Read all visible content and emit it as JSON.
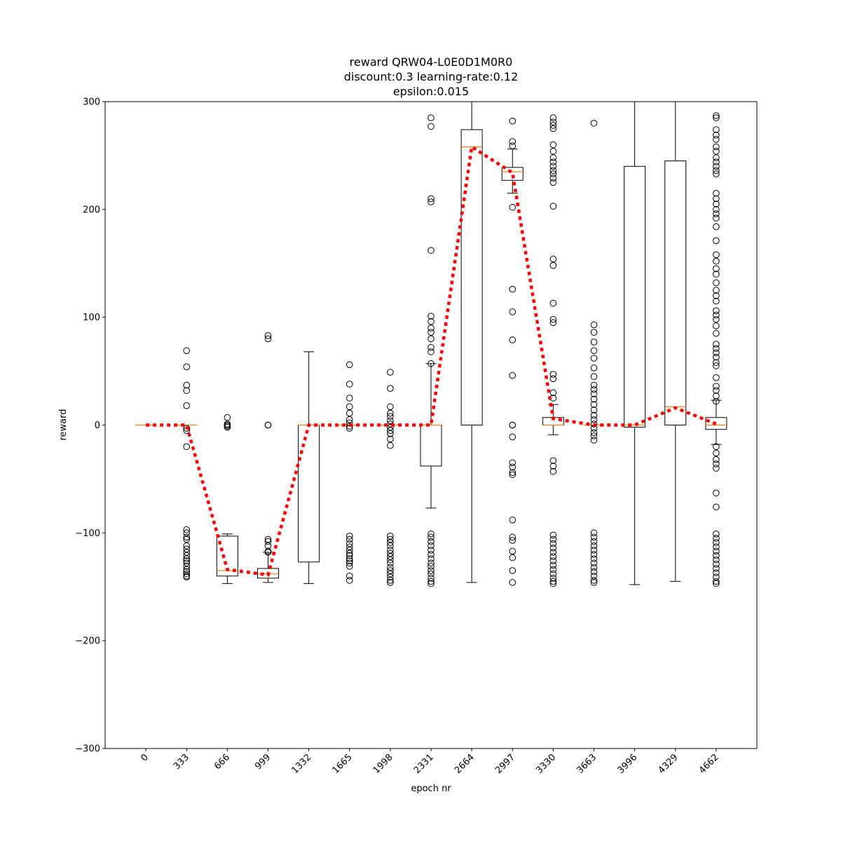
{
  "chart_data": {
    "type": "box",
    "title_lines": [
      "reward QRW04-L0E0D1M0R0",
      "discount:0.3 learning-rate:0.12",
      "epsilon:0.015"
    ],
    "xlabel": "epoch nr",
    "ylabel": "reward",
    "ylim": [
      -300,
      300
    ],
    "yticks": [
      -300,
      -200,
      -100,
      0,
      100,
      200,
      300
    ],
    "ytick_labels": [
      "−300",
      "−200",
      "−100",
      "0",
      "100",
      "200",
      "300"
    ],
    "categories": [
      "0",
      "333",
      "666",
      "999",
      "1332",
      "1665",
      "1998",
      "2331",
      "2664",
      "2997",
      "3330",
      "3663",
      "3996",
      "4329",
      "4662"
    ],
    "grid": false,
    "colors": {
      "box": "#000000",
      "median": "#ff7f0e",
      "mean_line": "#ff0000"
    },
    "boxes": [
      {
        "q1": 0,
        "median": 0,
        "q3": 0,
        "whislo": 0,
        "whishi": 0,
        "fliers": []
      },
      {
        "q1": 0,
        "median": 0,
        "q3": 0,
        "whislo": 0,
        "whishi": 0,
        "fliers": [
          69,
          54,
          37,
          32,
          18,
          -3,
          -5,
          -20,
          -97,
          -100,
          -104,
          -106,
          -112,
          -115,
          -118,
          -121,
          -124,
          -126,
          -128,
          -131,
          -134,
          -136,
          -138,
          -140,
          -141
        ]
      },
      {
        "q1": -140,
        "median": -135,
        "q3": -103,
        "whislo": -147,
        "whishi": -101,
        "fliers": [
          7,
          1,
          0,
          -1,
          -2
        ]
      },
      {
        "q1": -142,
        "median": -138,
        "q3": -133,
        "whislo": -146,
        "whishi": -118,
        "fliers": [
          83,
          80,
          0,
          0,
          -106,
          -108,
          -112,
          -117,
          -118
        ]
      },
      {
        "q1": -127,
        "median": 0,
        "q3": 0,
        "whislo": -147,
        "whishi": 68,
        "fliers": []
      },
      {
        "q1": 0,
        "median": 0,
        "q3": 0,
        "whislo": 0,
        "whishi": 0,
        "fliers": [
          56,
          38,
          25,
          17,
          11,
          5,
          2,
          -1,
          -3,
          -103,
          -106,
          -110,
          -113,
          -116,
          -119,
          -121,
          -124,
          -126,
          -128,
          -131,
          -140,
          -144
        ]
      },
      {
        "q1": 0,
        "median": 0,
        "q3": 0,
        "whislo": 0,
        "whishi": 0,
        "fliers": [
          49,
          34,
          17,
          11,
          8,
          4,
          1,
          -2,
          -5,
          -8,
          -13,
          -19,
          -103,
          -106,
          -109,
          -112,
          -116,
          -119,
          -122,
          -125,
          -128,
          -132,
          -135,
          -138,
          -141,
          -144,
          -146
        ]
      },
      {
        "q1": -38,
        "median": 0,
        "q3": 0,
        "whislo": -77,
        "whishi": 57,
        "fliers": [
          285,
          277,
          210,
          207,
          162,
          101,
          96,
          90,
          86,
          80,
          72,
          68,
          57,
          -101,
          -104,
          -108,
          -112,
          -116,
          -120,
          -124,
          -128,
          -131,
          -135,
          -138,
          -142,
          -145,
          -147
        ]
      },
      {
        "q1": 0,
        "median": 258,
        "q3": 274,
        "whislo": -146,
        "whishi": 300,
        "fliers": []
      },
      {
        "q1": 227,
        "median": 235,
        "q3": 239,
        "whislo": 215,
        "whishi": 256,
        "fliers": [
          282,
          263,
          259,
          202,
          126,
          105,
          79,
          46,
          0,
          0,
          -11,
          -35,
          -39,
          -44,
          -46,
          -88,
          -104,
          -107,
          -117,
          -123,
          -135,
          -146
        ]
      },
      {
        "q1": 0,
        "median": 0,
        "q3": 7,
        "whislo": -9,
        "whishi": 19,
        "fliers": [
          285,
          281,
          278,
          275,
          260,
          254,
          248,
          244,
          240,
          236,
          233,
          229,
          225,
          203,
          154,
          148,
          113,
          98,
          95,
          47,
          43,
          30,
          25,
          -33,
          -38,
          -43,
          -102,
          -106,
          -110,
          -114,
          -118,
          -122,
          -126,
          -130,
          -134,
          -138,
          -142,
          -145,
          -147
        ]
      },
      {
        "q1": 0,
        "median": 0,
        "q3": 0,
        "whislo": 0,
        "whishi": 0,
        "fliers": [
          280,
          93,
          86,
          77,
          69,
          62,
          53,
          45,
          37,
          33,
          29,
          24,
          19,
          14,
          9,
          5,
          1,
          -3,
          -7,
          -10,
          -14,
          -100,
          -104,
          -108,
          -112,
          -116,
          -120,
          -124,
          -128,
          -132,
          -136,
          -140,
          -144,
          -146
        ]
      },
      {
        "q1": -2,
        "median": 0,
        "q3": 240,
        "whislo": -148,
        "whishi": 300,
        "fliers": []
      },
      {
        "q1": 0,
        "median": 17,
        "q3": 245,
        "whislo": -145,
        "whishi": 300,
        "fliers": []
      },
      {
        "q1": -4,
        "median": 0,
        "q3": 7,
        "whislo": -18,
        "whishi": 23,
        "fliers": [
          287,
          285,
          274,
          269,
          265,
          258,
          254,
          248,
          244,
          240,
          236,
          233,
          215,
          210,
          205,
          200,
          196,
          192,
          184,
          171,
          158,
          152,
          145,
          140,
          132,
          125,
          120,
          115,
          106,
          102,
          98,
          92,
          85,
          75,
          71,
          67,
          63,
          58,
          55,
          44,
          36,
          32,
          27,
          22,
          -20,
          -26,
          -32,
          -36,
          -40,
          -63,
          -76,
          -101,
          -105,
          -109,
          -113,
          -117,
          -121,
          -125,
          -129,
          -133,
          -137,
          -141,
          -145,
          -147
        ]
      }
    ],
    "mean_line": {
      "values": [
        0,
        0,
        -134,
        -139,
        0,
        0,
        0,
        0,
        258,
        234,
        6,
        0,
        0,
        16,
        1
      ],
      "style": "dotted"
    }
  }
}
